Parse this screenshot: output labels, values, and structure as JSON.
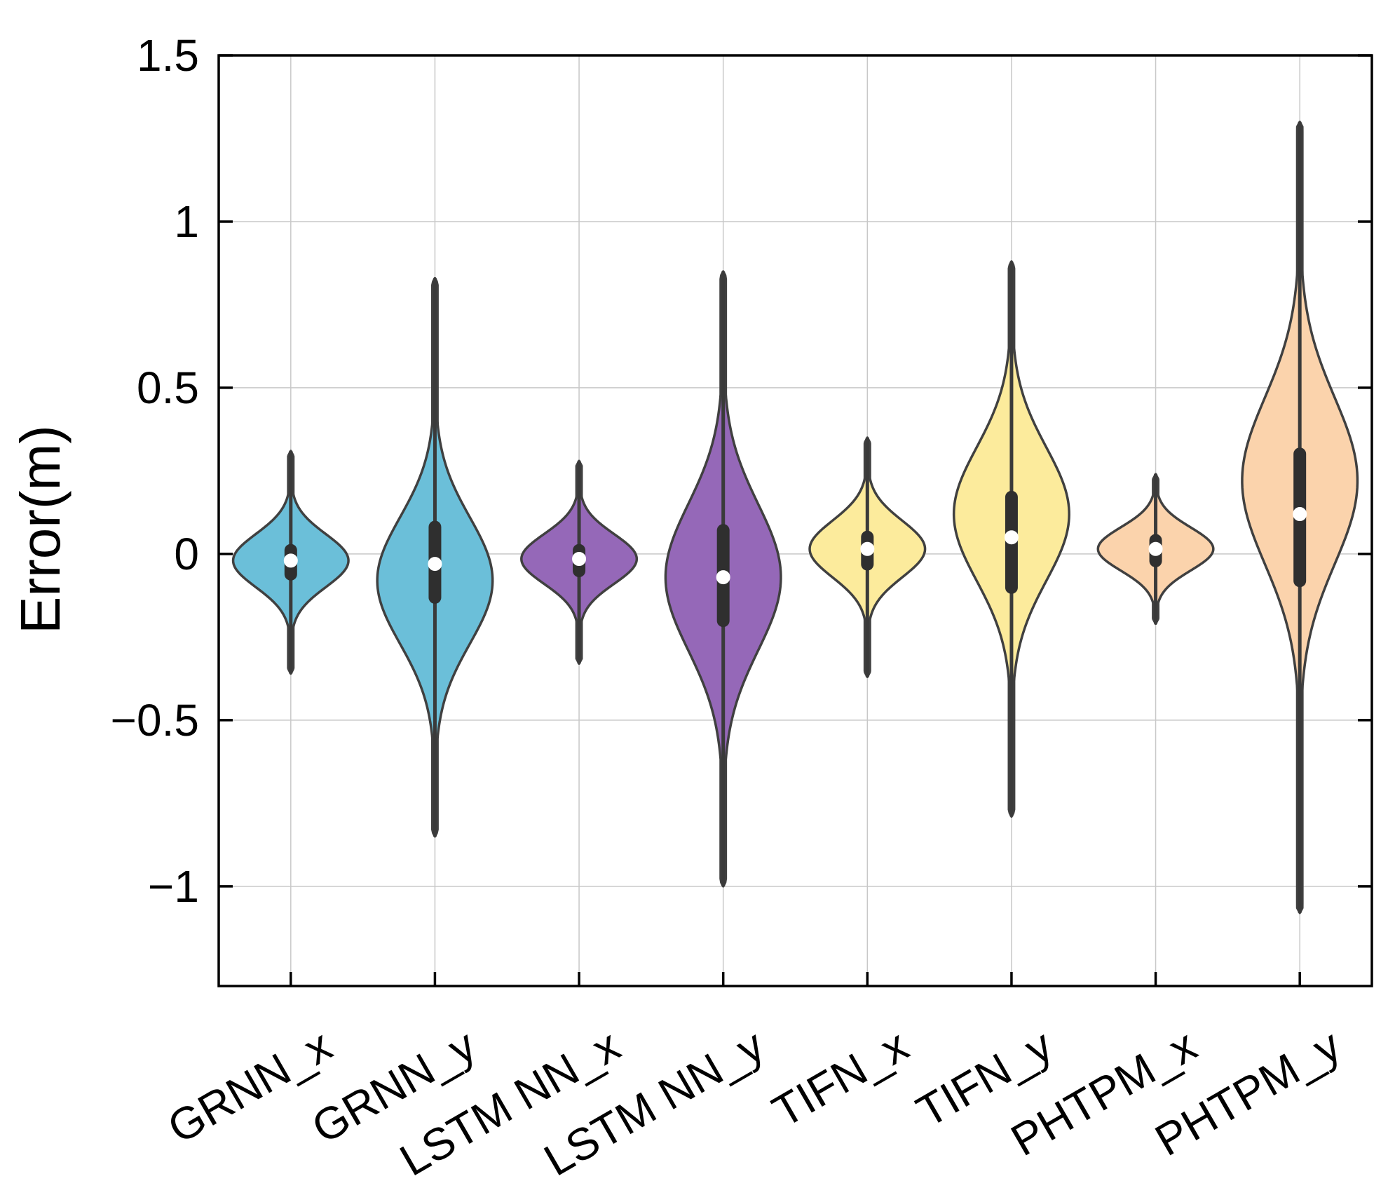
{
  "chart_data": {
    "type": "violin",
    "title": "",
    "xlabel": "",
    "ylabel": "Error(m)",
    "ylim": [
      -1.3,
      1.5
    ],
    "yticks": [
      -1,
      -0.5,
      0,
      0.5,
      1,
      1.5
    ],
    "ytick_labels": [
      "−1",
      "−0.5",
      "0",
      "0.5",
      "1",
      "1.5"
    ],
    "grid": true,
    "categories": [
      "GRNN_x",
      "GRNN_y",
      "LSTM NN_x",
      "LSTM NN_y",
      "TIFN_x",
      "TIFN_y",
      "PHTPM_x",
      "PHTPM_y"
    ],
    "series": [
      {
        "name": "GRNN_x",
        "color": "#6BBFD9",
        "min": -0.36,
        "max": 0.31,
        "q1": -0.08,
        "q3": 0.03,
        "median": -0.02,
        "spread": 0.08,
        "skew": 0.0,
        "max_width": 0.4
      },
      {
        "name": "GRNN_y",
        "color": "#6BBFD9",
        "min": -0.85,
        "max": 0.83,
        "q1": -0.15,
        "q3": 0.1,
        "median": -0.03,
        "spread": 0.19,
        "skew": -0.05,
        "max_width": 0.4
      },
      {
        "name": "LSTM NN_x",
        "color": "#9568B8",
        "min": -0.33,
        "max": 0.28,
        "q1": -0.07,
        "q3": 0.03,
        "median": -0.015,
        "spread": 0.075,
        "skew": 0.0,
        "max_width": 0.4
      },
      {
        "name": "LSTM NN_y",
        "color": "#9568B8",
        "min": -1.0,
        "max": 0.85,
        "q1": -0.22,
        "q3": 0.09,
        "median": -0.07,
        "spread": 0.22,
        "skew": 0.0,
        "max_width": 0.4
      },
      {
        "name": "TIFN_x",
        "color": "#FCEB9C",
        "min": -0.37,
        "max": 0.35,
        "q1": -0.05,
        "q3": 0.07,
        "median": 0.015,
        "spread": 0.085,
        "skew": 0.0,
        "max_width": 0.4
      },
      {
        "name": "TIFN_y",
        "color": "#FCEB9C",
        "min": -0.79,
        "max": 0.88,
        "q1": -0.12,
        "q3": 0.19,
        "median": 0.05,
        "spread": 0.2,
        "skew": 0.07,
        "max_width": 0.4
      },
      {
        "name": "PHTPM_x",
        "color": "#FBD3AC",
        "min": -0.21,
        "max": 0.24,
        "q1": -0.04,
        "q3": 0.06,
        "median": 0.015,
        "spread": 0.065,
        "skew": 0.0,
        "max_width": 0.4
      },
      {
        "name": "PHTPM_y",
        "color": "#FBD3AC",
        "min": -1.08,
        "max": 1.3,
        "q1": -0.1,
        "q3": 0.32,
        "median": 0.12,
        "spread": 0.25,
        "skew": 0.1,
        "max_width": 0.4
      }
    ]
  }
}
